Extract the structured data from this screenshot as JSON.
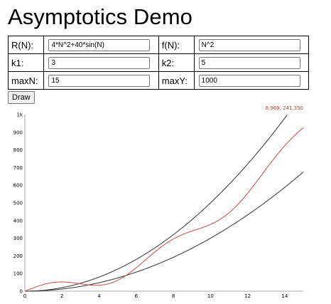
{
  "header": {
    "title": "Asymptotics Demo"
  },
  "params": {
    "R_label": "R(N):",
    "R_value": "4*N^2+40*sin(N)",
    "f_label": "f(N):",
    "f_value": "N^2",
    "k1_label": "k1:",
    "k1_value": "3",
    "k2_label": "k2:",
    "k2_value": "5",
    "maxN_label": "maxN:",
    "maxN_value": "15",
    "maxY_label": "maxY:",
    "maxY_value": "1000"
  },
  "toolbar": {
    "draw_label": "Draw"
  },
  "colors": {
    "bound": "#333333",
    "R": "#cc4b4b",
    "axis": "#aaaaaa"
  },
  "chart_data": {
    "type": "line",
    "readout": "8.969, 241.350",
    "xlim": [
      0,
      15
    ],
    "ylim": [
      0,
      1000
    ],
    "x_ticks": [
      "0",
      "2",
      "4",
      "6",
      "8",
      "10",
      "12",
      "14"
    ],
    "y_ticks": [
      "0",
      "100",
      "200",
      "300",
      "400",
      "500",
      "600",
      "700",
      "800",
      "900",
      "1k"
    ],
    "series": [
      {
        "formula": "3*N^2"
      },
      {
        "formula": "5*N^2"
      },
      {
        "formula": "4*N^2+40*sin(N)"
      }
    ]
  }
}
